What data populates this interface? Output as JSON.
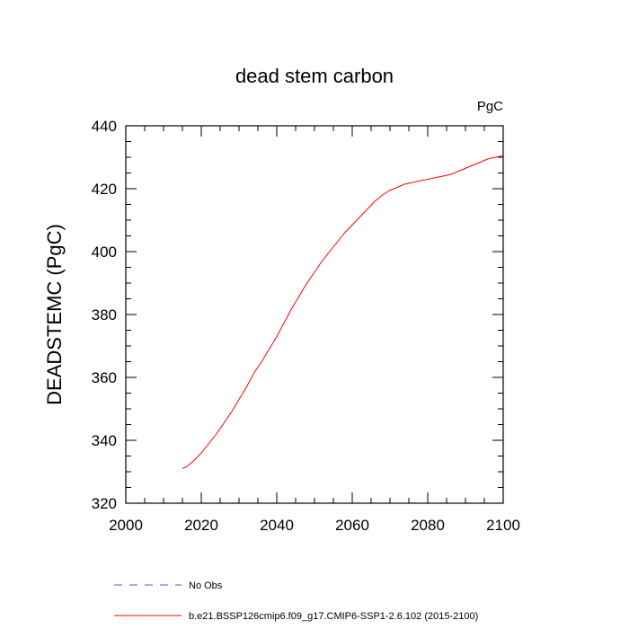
{
  "chart_data": {
    "type": "line",
    "title": "dead stem carbon",
    "units_label": "PgC",
    "xlabel": "",
    "ylabel": "DEADSTEMC  (PgC)",
    "xlim": [
      2000,
      2100
    ],
    "ylim": [
      320,
      440
    ],
    "xticks": [
      2000,
      2020,
      2040,
      2060,
      2080,
      2100
    ],
    "yticks": [
      320,
      340,
      360,
      380,
      400,
      420,
      440
    ],
    "grid": false,
    "legend_placement": "bottom",
    "series": [
      {
        "name": "No Obs",
        "style": "dashed",
        "color": "#5555dd",
        "x": [],
        "y": []
      },
      {
        "name": "b.e21.BSSP126cmip6.f09_g17.CMIP6-SSP1-2.6.102 (2015-2100)",
        "style": "solid",
        "color": "#ff0000",
        "x": [
          2015,
          2016,
          2018,
          2020,
          2022,
          2024,
          2026,
          2028,
          2030,
          2032,
          2034,
          2036,
          2038,
          2040,
          2042,
          2044,
          2046,
          2048,
          2050,
          2052,
          2054,
          2056,
          2058,
          2060,
          2062,
          2064,
          2066,
          2068,
          2070,
          2072,
          2074,
          2076,
          2078,
          2080,
          2082,
          2084,
          2086,
          2088,
          2090,
          2092,
          2094,
          2096,
          2098,
          2100
        ],
        "y": [
          331.0,
          331.5,
          333.5,
          336.0,
          339.0,
          342.0,
          345.5,
          349.0,
          353.0,
          357.0,
          361.5,
          365.0,
          369.0,
          373.0,
          377.5,
          382.0,
          386.0,
          390.0,
          393.5,
          397.0,
          400.0,
          403.0,
          406.0,
          408.5,
          411.0,
          413.5,
          416.0,
          418.0,
          419.5,
          420.5,
          421.5,
          422.0,
          422.5,
          423.0,
          423.5,
          424.0,
          424.5,
          425.5,
          426.5,
          427.5,
          428.5,
          429.5,
          430.0,
          430.5
        ]
      }
    ]
  }
}
